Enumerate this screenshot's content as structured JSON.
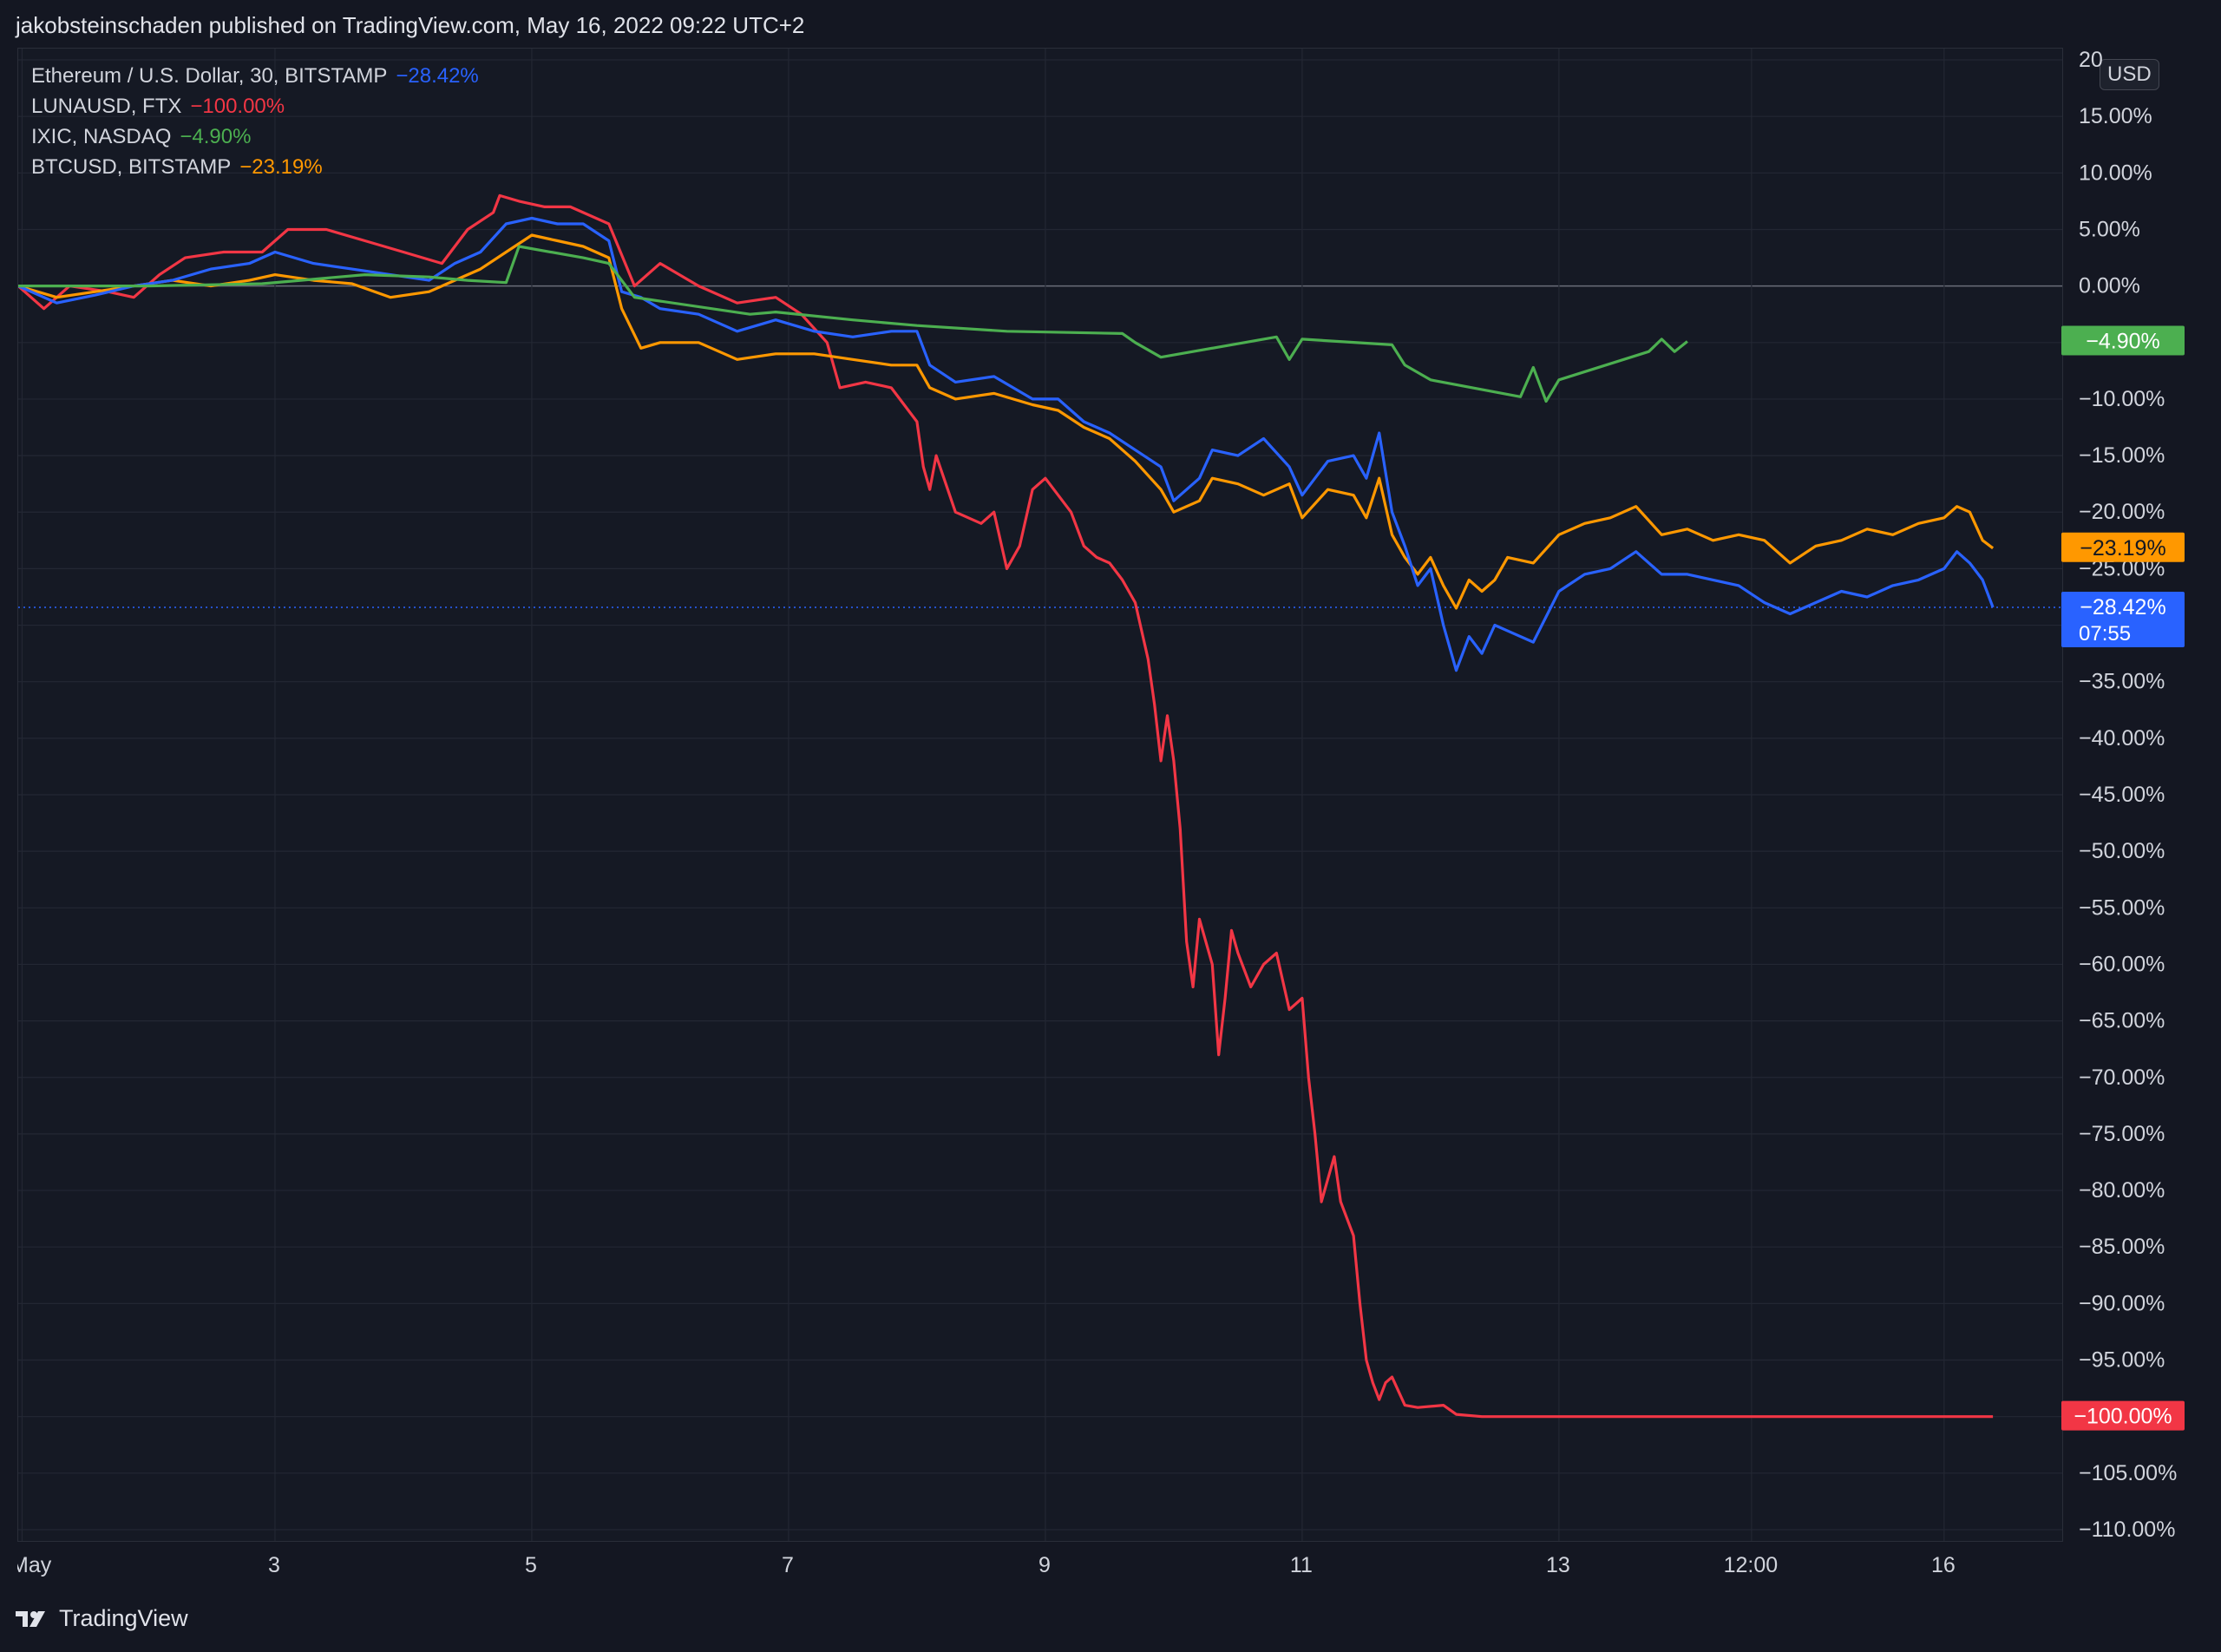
{
  "header": {
    "published_text": "jakobsteinschaden published on TradingView.com, May 16, 2022 09:22 UTC+2"
  },
  "legend": [
    {
      "name": "Ethereum / U.S. Dollar, 30, BITSTAMP",
      "change": "−28.42%",
      "color": "#2962ff"
    },
    {
      "name": "LUNAUSD, FTX",
      "change": "−100.00%",
      "color": "#f23645"
    },
    {
      "name": "IXIC, NASDAQ",
      "change": "−4.90%",
      "color": "#4caf50"
    },
    {
      "name": "BTCUSD, BITSTAMP",
      "change": "−23.19%",
      "color": "#ff9800"
    }
  ],
  "currency_button": "USD",
  "eth_countdown": "07:55",
  "footer": {
    "brand": "TradingView"
  },
  "chart_data": {
    "type": "line",
    "x_unit": "days since May 1, 2022",
    "xlim": [
      1.0,
      16.92
    ],
    "ylim": [
      -111,
      21
    ],
    "ytick_values": [
      20,
      15,
      10,
      5,
      0,
      -5,
      -10,
      -15,
      -20,
      -25,
      -30,
      -35,
      -40,
      -45,
      -50,
      -55,
      -60,
      -65,
      -70,
      -75,
      -80,
      -85,
      -90,
      -95,
      -100,
      -105,
      -110
    ],
    "ytick_labels": [
      "20",
      "15.00%",
      "10.00%",
      "5.00%",
      "0.00%",
      "−5.00%",
      "−10.00%",
      "−15.00%",
      "−20.00%",
      "−25.00%",
      "−30.00%",
      "−35.00%",
      "−40.00%",
      "−45.00%",
      "−50.00%",
      "−55.00%",
      "−60.00%",
      "−65.00%",
      "−70.00%",
      "−75.00%",
      "−80.00%",
      "−85.00%",
      "−90.00%",
      "−95.00%",
      "−100.00%",
      "−105.00%",
      "−110.00%"
    ],
    "xtick_values": [
      1.03,
      3.0,
      5.0,
      7.0,
      9.0,
      11.0,
      13.0,
      14.5,
      16.0
    ],
    "xtick_labels": [
      "May",
      "3",
      "5",
      "7",
      "9",
      "11",
      "13",
      "12:00",
      "16"
    ],
    "grid": true,
    "zero_line": true,
    "series": [
      {
        "name": "LUNAUSD, FTX",
        "color": "#f23645",
        "last_value_label": "−100.00%",
        "points": [
          [
            1.0,
            0
          ],
          [
            1.2,
            -2
          ],
          [
            1.4,
            0
          ],
          [
            1.7,
            -0.5
          ],
          [
            1.9,
            -1
          ],
          [
            2.1,
            1
          ],
          [
            2.3,
            2.5
          ],
          [
            2.6,
            3
          ],
          [
            2.9,
            3
          ],
          [
            3.1,
            5
          ],
          [
            3.4,
            5
          ],
          [
            3.7,
            4
          ],
          [
            4.0,
            3
          ],
          [
            4.3,
            2
          ],
          [
            4.5,
            5
          ],
          [
            4.7,
            6.5
          ],
          [
            4.75,
            8
          ],
          [
            4.9,
            7.5
          ],
          [
            5.1,
            7
          ],
          [
            5.3,
            7
          ],
          [
            5.6,
            5.5
          ],
          [
            5.8,
            0
          ],
          [
            6.0,
            2
          ],
          [
            6.3,
            0
          ],
          [
            6.6,
            -1.5
          ],
          [
            6.9,
            -1
          ],
          [
            7.1,
            -2.5
          ],
          [
            7.3,
            -5
          ],
          [
            7.4,
            -9
          ],
          [
            7.6,
            -8.5
          ],
          [
            7.8,
            -9
          ],
          [
            8.0,
            -12
          ],
          [
            8.05,
            -16
          ],
          [
            8.1,
            -18
          ],
          [
            8.15,
            -15
          ],
          [
            8.3,
            -20
          ],
          [
            8.5,
            -21
          ],
          [
            8.6,
            -20
          ],
          [
            8.7,
            -25
          ],
          [
            8.8,
            -23
          ],
          [
            8.9,
            -18
          ],
          [
            9.0,
            -17
          ],
          [
            9.2,
            -20
          ],
          [
            9.3,
            -23
          ],
          [
            9.4,
            -24
          ],
          [
            9.5,
            -24.5
          ],
          [
            9.6,
            -26
          ],
          [
            9.7,
            -28
          ],
          [
            9.8,
            -33
          ],
          [
            9.85,
            -37
          ],
          [
            9.9,
            -42
          ],
          [
            9.95,
            -38
          ],
          [
            10.0,
            -42
          ],
          [
            10.05,
            -48
          ],
          [
            10.1,
            -58
          ],
          [
            10.15,
            -62
          ],
          [
            10.2,
            -56
          ],
          [
            10.3,
            -60
          ],
          [
            10.35,
            -68
          ],
          [
            10.4,
            -63
          ],
          [
            10.45,
            -57
          ],
          [
            10.5,
            -59
          ],
          [
            10.6,
            -62
          ],
          [
            10.7,
            -60
          ],
          [
            10.8,
            -59
          ],
          [
            10.9,
            -64
          ],
          [
            11.0,
            -63
          ],
          [
            11.05,
            -70
          ],
          [
            11.1,
            -75
          ],
          [
            11.15,
            -81
          ],
          [
            11.2,
            -79
          ],
          [
            11.25,
            -77
          ],
          [
            11.3,
            -81
          ],
          [
            11.4,
            -84
          ],
          [
            11.45,
            -90
          ],
          [
            11.5,
            -95
          ],
          [
            11.55,
            -97
          ],
          [
            11.6,
            -98.5
          ],
          [
            11.65,
            -97
          ],
          [
            11.7,
            -96.5
          ],
          [
            11.8,
            -99
          ],
          [
            11.9,
            -99.2
          ],
          [
            12.1,
            -99
          ],
          [
            12.2,
            -99.8
          ],
          [
            12.4,
            -100
          ],
          [
            13.0,
            -100
          ],
          [
            14.0,
            -100
          ],
          [
            15.0,
            -100
          ],
          [
            16.0,
            -100
          ],
          [
            16.38,
            -100
          ]
        ]
      },
      {
        "name": "BTCUSD, BITSTAMP",
        "color": "#ff9800",
        "last_value_label": "−23.19%",
        "points": [
          [
            1.0,
            0
          ],
          [
            1.3,
            -1
          ],
          [
            1.6,
            -0.5
          ],
          [
            1.9,
            0
          ],
          [
            2.2,
            0.5
          ],
          [
            2.5,
            0
          ],
          [
            2.8,
            0.5
          ],
          [
            3.0,
            1
          ],
          [
            3.3,
            0.5
          ],
          [
            3.6,
            0.2
          ],
          [
            3.9,
            -1
          ],
          [
            4.2,
            -0.5
          ],
          [
            4.4,
            0.5
          ],
          [
            4.6,
            1.5
          ],
          [
            4.8,
            3
          ],
          [
            5.0,
            4.5
          ],
          [
            5.2,
            4
          ],
          [
            5.4,
            3.5
          ],
          [
            5.6,
            2.5
          ],
          [
            5.7,
            -2
          ],
          [
            5.85,
            -5.5
          ],
          [
            6.0,
            -5
          ],
          [
            6.3,
            -5
          ],
          [
            6.6,
            -6.5
          ],
          [
            6.9,
            -6
          ],
          [
            7.2,
            -6
          ],
          [
            7.5,
            -6.5
          ],
          [
            7.8,
            -7
          ],
          [
            8.0,
            -7
          ],
          [
            8.1,
            -9
          ],
          [
            8.3,
            -10
          ],
          [
            8.6,
            -9.5
          ],
          [
            8.9,
            -10.5
          ],
          [
            9.1,
            -11
          ],
          [
            9.3,
            -12.5
          ],
          [
            9.5,
            -13.5
          ],
          [
            9.7,
            -15.5
          ],
          [
            9.9,
            -18
          ],
          [
            10.0,
            -20
          ],
          [
            10.2,
            -19
          ],
          [
            10.3,
            -17
          ],
          [
            10.5,
            -17.5
          ],
          [
            10.7,
            -18.5
          ],
          [
            10.9,
            -17.5
          ],
          [
            11.0,
            -20.5
          ],
          [
            11.2,
            -18
          ],
          [
            11.4,
            -18.5
          ],
          [
            11.5,
            -20.5
          ],
          [
            11.6,
            -17
          ],
          [
            11.7,
            -22
          ],
          [
            11.8,
            -24
          ],
          [
            11.9,
            -25.5
          ],
          [
            12.0,
            -24
          ],
          [
            12.1,
            -26.5
          ],
          [
            12.2,
            -28.5
          ],
          [
            12.3,
            -26
          ],
          [
            12.4,
            -27
          ],
          [
            12.5,
            -26
          ],
          [
            12.6,
            -24
          ],
          [
            12.8,
            -24.5
          ],
          [
            13.0,
            -22
          ],
          [
            13.2,
            -21
          ],
          [
            13.4,
            -20.5
          ],
          [
            13.6,
            -19.5
          ],
          [
            13.8,
            -22
          ],
          [
            14.0,
            -21.5
          ],
          [
            14.2,
            -22.5
          ],
          [
            14.4,
            -22
          ],
          [
            14.6,
            -22.5
          ],
          [
            14.8,
            -24.5
          ],
          [
            15.0,
            -23
          ],
          [
            15.2,
            -22.5
          ],
          [
            15.4,
            -21.5
          ],
          [
            15.6,
            -22
          ],
          [
            15.8,
            -21
          ],
          [
            16.0,
            -20.5
          ],
          [
            16.1,
            -19.5
          ],
          [
            16.2,
            -20
          ],
          [
            16.3,
            -22.5
          ],
          [
            16.38,
            -23.19
          ]
        ]
      },
      {
        "name": "Ethereum / U.S. Dollar, 30, BITSTAMP",
        "color": "#2962ff",
        "last_value_label": "−28.42%",
        "points": [
          [
            1.0,
            0
          ],
          [
            1.3,
            -1.5
          ],
          [
            1.6,
            -0.8
          ],
          [
            1.9,
            0
          ],
          [
            2.2,
            0.5
          ],
          [
            2.5,
            1.5
          ],
          [
            2.8,
            2
          ],
          [
            3.0,
            3
          ],
          [
            3.3,
            2
          ],
          [
            3.6,
            1.5
          ],
          [
            3.9,
            1
          ],
          [
            4.2,
            0.5
          ],
          [
            4.4,
            2
          ],
          [
            4.6,
            3
          ],
          [
            4.8,
            5.5
          ],
          [
            5.0,
            6
          ],
          [
            5.2,
            5.5
          ],
          [
            5.4,
            5.5
          ],
          [
            5.6,
            4
          ],
          [
            5.7,
            -0.5
          ],
          [
            5.85,
            -1
          ],
          [
            6.0,
            -2
          ],
          [
            6.3,
            -2.5
          ],
          [
            6.6,
            -4
          ],
          [
            6.9,
            -3
          ],
          [
            7.2,
            -4
          ],
          [
            7.5,
            -4.5
          ],
          [
            7.8,
            -4
          ],
          [
            8.0,
            -4
          ],
          [
            8.1,
            -7
          ],
          [
            8.3,
            -8.5
          ],
          [
            8.6,
            -8
          ],
          [
            8.9,
            -10
          ],
          [
            9.1,
            -10
          ],
          [
            9.3,
            -12
          ],
          [
            9.5,
            -13
          ],
          [
            9.7,
            -14.5
          ],
          [
            9.9,
            -16
          ],
          [
            10.0,
            -19
          ],
          [
            10.2,
            -17
          ],
          [
            10.3,
            -14.5
          ],
          [
            10.5,
            -15
          ],
          [
            10.7,
            -13.5
          ],
          [
            10.9,
            -16
          ],
          [
            11.0,
            -18.5
          ],
          [
            11.2,
            -15.5
          ],
          [
            11.4,
            -15
          ],
          [
            11.5,
            -17
          ],
          [
            11.6,
            -13
          ],
          [
            11.7,
            -20
          ],
          [
            11.8,
            -23
          ],
          [
            11.9,
            -26.5
          ],
          [
            12.0,
            -25
          ],
          [
            12.1,
            -30
          ],
          [
            12.2,
            -34
          ],
          [
            12.3,
            -31
          ],
          [
            12.4,
            -32.5
          ],
          [
            12.5,
            -30
          ],
          [
            12.6,
            -30.5
          ],
          [
            12.8,
            -31.5
          ],
          [
            13.0,
            -27
          ],
          [
            13.2,
            -25.5
          ],
          [
            13.4,
            -25
          ],
          [
            13.6,
            -23.5
          ],
          [
            13.8,
            -25.5
          ],
          [
            14.0,
            -25.5
          ],
          [
            14.2,
            -26
          ],
          [
            14.4,
            -26.5
          ],
          [
            14.6,
            -28
          ],
          [
            14.8,
            -29
          ],
          [
            15.0,
            -28
          ],
          [
            15.2,
            -27
          ],
          [
            15.4,
            -27.5
          ],
          [
            15.6,
            -26.5
          ],
          [
            15.8,
            -26
          ],
          [
            16.0,
            -25
          ],
          [
            16.1,
            -23.5
          ],
          [
            16.2,
            -24.5
          ],
          [
            16.3,
            -26
          ],
          [
            16.38,
            -28.42
          ]
        ]
      },
      {
        "name": "IXIC, NASDAQ",
        "color": "#4caf50",
        "last_value_label": "−4.90%",
        "points": [
          [
            1.0,
            0
          ],
          [
            2.0,
            0
          ],
          [
            2.9,
            0.2
          ],
          [
            3.2,
            0.5
          ],
          [
            3.7,
            1
          ],
          [
            4.2,
            0.8
          ],
          [
            4.5,
            0.5
          ],
          [
            4.8,
            0.3
          ],
          [
            4.9,
            3.5
          ],
          [
            5.4,
            2.5
          ],
          [
            5.6,
            2
          ],
          [
            5.8,
            -1
          ],
          [
            6.7,
            -2.5
          ],
          [
            6.9,
            -2.3
          ],
          [
            7.5,
            -3
          ],
          [
            8.0,
            -3.5
          ],
          [
            8.7,
            -4
          ],
          [
            9.6,
            -4.2
          ],
          [
            9.7,
            -5
          ],
          [
            9.9,
            -6.3
          ],
          [
            10.8,
            -4.5
          ],
          [
            10.9,
            -6.5
          ],
          [
            11.0,
            -4.7
          ],
          [
            11.7,
            -5.2
          ],
          [
            11.8,
            -7
          ],
          [
            12.0,
            -8.3
          ],
          [
            12.7,
            -9.8
          ],
          [
            12.8,
            -7.2
          ],
          [
            12.9,
            -10.2
          ],
          [
            13.0,
            -8.3
          ],
          [
            13.7,
            -5.8
          ],
          [
            13.8,
            -4.7
          ],
          [
            13.9,
            -5.8
          ],
          [
            14.0,
            -4.9
          ]
        ]
      }
    ]
  }
}
